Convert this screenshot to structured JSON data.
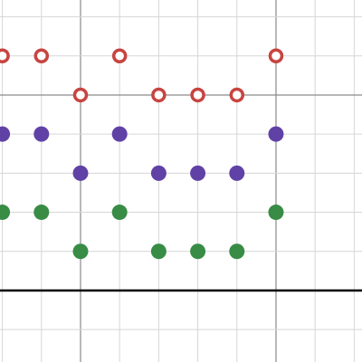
{
  "chart_data": {
    "type": "scatter",
    "xlim": [
      2.94,
      12.2
    ],
    "ylim": [
      -1.83,
      7.43
    ],
    "xticks": [
      3,
      4,
      5,
      6,
      7,
      8,
      9,
      10,
      11,
      12
    ],
    "yticks": [
      -1,
      0,
      1,
      2,
      3,
      4,
      5,
      6,
      7
    ],
    "grid": true,
    "series": [
      {
        "color": "#c74440",
        "hollow": true,
        "x": [
          3,
          4,
          6,
          10,
          5,
          7,
          8,
          9
        ],
        "values": [
          6,
          6,
          6,
          6,
          5,
          5,
          5,
          5
        ]
      },
      {
        "color": "#6042a6",
        "hollow": false,
        "x": [
          3,
          4,
          6,
          10,
          5,
          7,
          8,
          9
        ],
        "values": [
          4,
          4,
          4,
          4,
          3,
          3,
          3,
          3
        ]
      },
      {
        "color": "#388c46",
        "hollow": false,
        "x": [
          3,
          4,
          6,
          10,
          5,
          7,
          8,
          9
        ],
        "values": [
          2,
          2,
          2,
          2,
          1,
          1,
          1,
          1
        ]
      }
    ]
  }
}
